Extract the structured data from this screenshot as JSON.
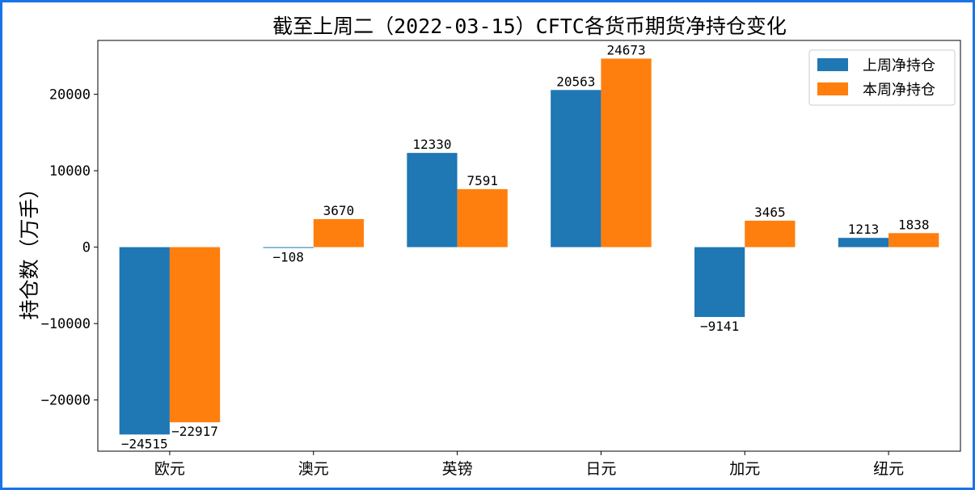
{
  "chart_data": {
    "type": "bar",
    "title": "截至上周二（2022-03-15）CFTC各货币期货净持仓变化",
    "xlabel": "",
    "ylabel": "持仓数（万手）",
    "categories": [
      "欧元",
      "澳元",
      "英镑",
      "日元",
      "加元",
      "纽元"
    ],
    "series": [
      {
        "name": "上周净持仓",
        "color": "#1f77b4",
        "values": [
          -24515,
          -108,
          12330,
          20563,
          -9141,
          1213
        ]
      },
      {
        "name": "本周净持仓",
        "color": "#ff7f0e",
        "values": [
          -22917,
          3670,
          7591,
          24673,
          3465,
          1838
        ]
      }
    ],
    "yticks": [
      -20000,
      -10000,
      0,
      10000,
      20000
    ],
    "ylim": [
      -26700,
      27050
    ],
    "grid": false,
    "legend_position": "top-right"
  }
}
